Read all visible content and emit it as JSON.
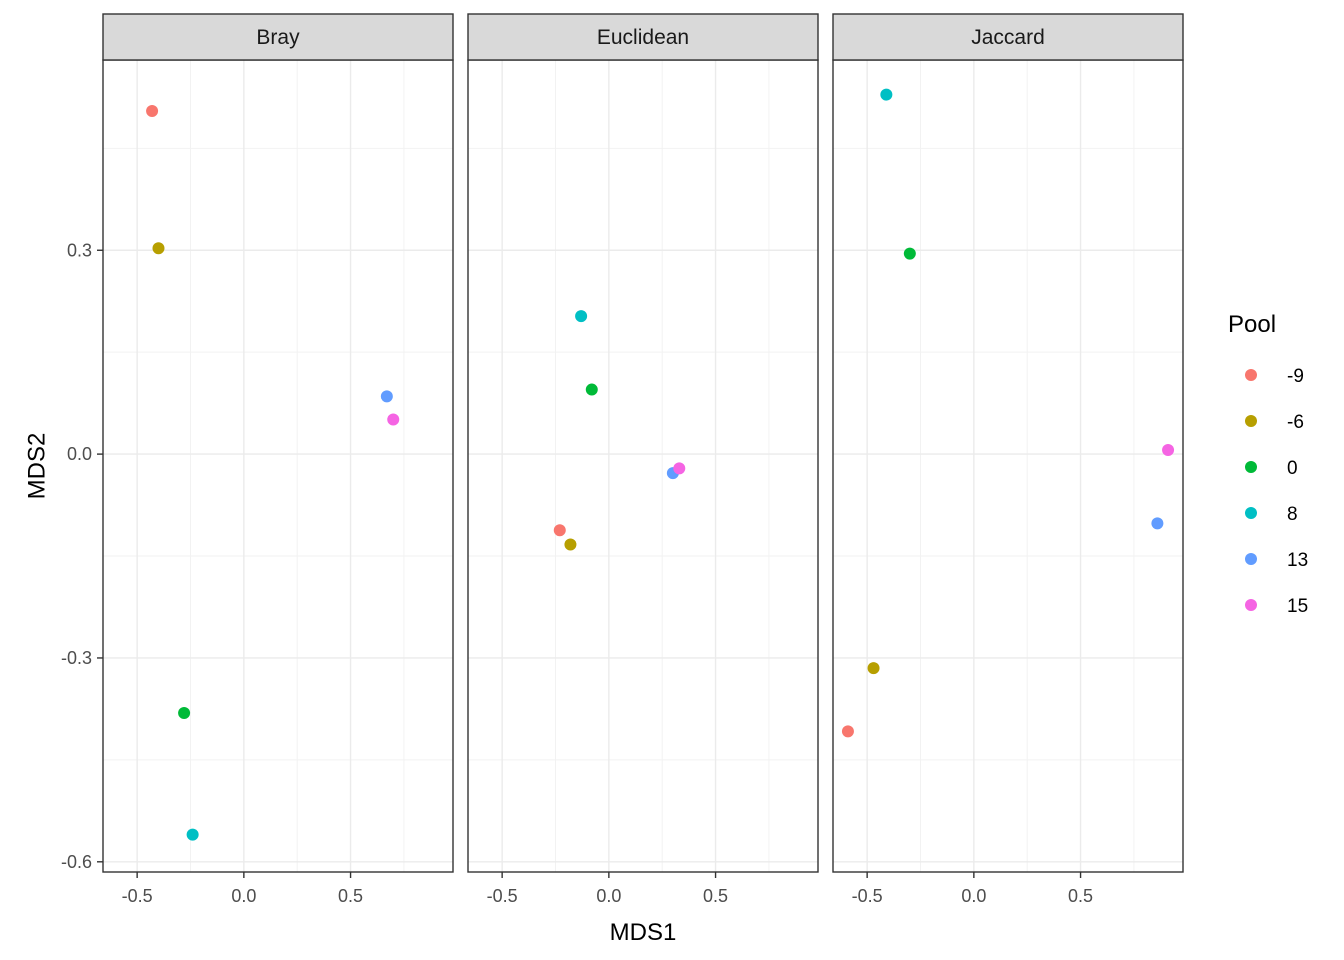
{
  "chart_data": {
    "type": "scatter",
    "xlabel": "MDS1",
    "ylabel": "MDS2",
    "xlim": [
      -0.66,
      0.98
    ],
    "ylim": [
      -0.615,
      0.58
    ],
    "x_ticks": [
      -0.5,
      0.0,
      0.5
    ],
    "x_tick_labels": [
      "-0.5",
      "0.0",
      "0.5"
    ],
    "y_ticks": [
      -0.6,
      -0.3,
      0.0,
      0.3
    ],
    "y_tick_labels": [
      "-0.6",
      "-0.3",
      "0.0",
      "0.3"
    ],
    "grid": true,
    "legend": {
      "title": "Pool",
      "placement": "right",
      "entries": [
        {
          "label": "-9",
          "color": "#F8766D"
        },
        {
          "label": "-6",
          "color": "#B79F00"
        },
        {
          "label": "0",
          "color": "#00BA38"
        },
        {
          "label": "8",
          "color": "#00BFC4"
        },
        {
          "label": "13",
          "color": "#619CFF"
        },
        {
          "label": "15",
          "color": "#F564E3"
        }
      ]
    },
    "panels": [
      {
        "name": "Bray",
        "points": [
          {
            "pool": "-9",
            "x": -0.43,
            "y": 0.505
          },
          {
            "pool": "-6",
            "x": -0.4,
            "y": 0.303
          },
          {
            "pool": "0",
            "x": -0.28,
            "y": -0.381
          },
          {
            "pool": "8",
            "x": -0.24,
            "y": -0.56
          },
          {
            "pool": "13",
            "x": 0.67,
            "y": 0.085
          },
          {
            "pool": "15",
            "x": 0.7,
            "y": 0.051
          }
        ]
      },
      {
        "name": "Euclidean",
        "points": [
          {
            "pool": "-9",
            "x": -0.23,
            "y": -0.112
          },
          {
            "pool": "-6",
            "x": -0.18,
            "y": -0.133
          },
          {
            "pool": "0",
            "x": -0.08,
            "y": 0.095
          },
          {
            "pool": "8",
            "x": -0.13,
            "y": 0.203
          },
          {
            "pool": "13",
            "x": 0.3,
            "y": -0.028
          },
          {
            "pool": "15",
            "x": 0.33,
            "y": -0.021
          }
        ]
      },
      {
        "name": "Jaccard",
        "points": [
          {
            "pool": "-9",
            "x": -0.59,
            "y": -0.408
          },
          {
            "pool": "-6",
            "x": -0.47,
            "y": -0.315
          },
          {
            "pool": "0",
            "x": -0.3,
            "y": 0.295
          },
          {
            "pool": "8",
            "x": -0.41,
            "y": 0.529
          },
          {
            "pool": "13",
            "x": 0.86,
            "y": -0.102
          },
          {
            "pool": "15",
            "x": 0.91,
            "y": 0.006
          }
        ]
      }
    ]
  }
}
